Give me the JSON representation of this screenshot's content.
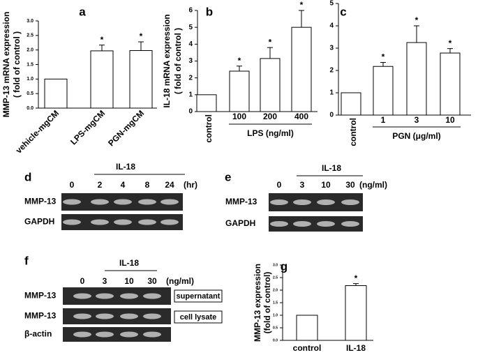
{
  "chart_data": [
    {
      "type": "bar",
      "panel": "a",
      "y_label": [
        "MMP-13 mRNA expression",
        "( fold of control )"
      ],
      "categories": [
        "vehicle-mgCM",
        "LPS-mgCM",
        "PGN-mgCM"
      ],
      "values": [
        1.0,
        1.97,
        1.98
      ],
      "errors": [
        null,
        0.2,
        0.3
      ],
      "stars": [
        null,
        "*",
        "*"
      ],
      "ylim": [
        0,
        3.0
      ],
      "yticks": [
        {
          "value": 0,
          "label": "0.0"
        },
        {
          "value": 0.5,
          "label": "0.5"
        },
        {
          "value": 1,
          "label": "1.0"
        },
        {
          "value": 1.5,
          "label": "1.5"
        },
        {
          "value": 2,
          "label": "2.0"
        },
        {
          "value": 2.5,
          "label": "2.5"
        },
        {
          "value": 3,
          "label": "3.0"
        }
      ],
      "color": "#ffffff"
    },
    {
      "type": "bar",
      "panel": "b",
      "y_label": [
        "IL-18 mRNA expression",
        "( fold of control )"
      ],
      "x_label": "LPS (ng/ml)",
      "categories": [
        "control",
        "100",
        "200",
        "400"
      ],
      "values": [
        1.0,
        2.4,
        3.15,
        5.0
      ],
      "errors": [
        null,
        0.3,
        0.65,
        1.0
      ],
      "stars": [
        null,
        "*",
        "*",
        "*"
      ],
      "ylim": [
        0,
        6
      ],
      "yticks": [
        0,
        1,
        2,
        3,
        4,
        5,
        6
      ],
      "color": "#ffffff"
    },
    {
      "type": "bar",
      "panel": "c",
      "x_label": "PGN (μg/ml)",
      "categories": [
        "control",
        "1",
        "3",
        "10"
      ],
      "values": [
        1.0,
        2.18,
        3.25,
        2.78
      ],
      "errors": [
        null,
        0.18,
        0.75,
        0.2
      ],
      "stars": [
        null,
        "*",
        "*",
        "*"
      ],
      "ylim": [
        0,
        5
      ],
      "yticks": [
        0,
        1,
        2,
        3,
        4,
        5
      ],
      "color": "#ffffff"
    },
    {
      "type": "bar",
      "panel": "g",
      "y_label": [
        "MMP-13 expression",
        "(fold of control)"
      ],
      "categories": [
        "control",
        "IL-18"
      ],
      "values": [
        1.0,
        2.18
      ],
      "errors": [
        null,
        0.08
      ],
      "stars": [
        null,
        "*"
      ],
      "ylim": [
        0,
        3.0
      ],
      "yticks": [
        {
          "value": 0,
          "label": "0.0"
        },
        {
          "value": 0.5,
          "label": "0.5"
        },
        {
          "value": 1,
          "label": "1.0"
        },
        {
          "value": 1.5,
          "label": "1.5"
        },
        {
          "value": 2,
          "label": "2.0"
        },
        {
          "value": 2.5,
          "label": "2.5"
        },
        {
          "value": 3,
          "label": "3.0"
        }
      ],
      "color": "#ffffff"
    }
  ],
  "gels": [
    {
      "panel": "d",
      "group": "IL-18",
      "lanes": [
        "0",
        "2",
        "4",
        "8",
        "24"
      ],
      "unit": "(hr)",
      "rows": [
        {
          "name": "MMP-13"
        },
        {
          "name": "GAPDH"
        }
      ]
    },
    {
      "panel": "e",
      "group": "IL-18",
      "lanes": [
        "0",
        "3",
        "10",
        "30"
      ],
      "unit": "(ng/ml)",
      "rows": [
        {
          "name": "MMP-13"
        },
        {
          "name": "GAPDH"
        }
      ]
    },
    {
      "panel": "f",
      "group": "IL-18",
      "lanes": [
        "0",
        "3",
        "10",
        "30"
      ],
      "unit": "(ng/ml)",
      "rows": [
        {
          "name": "MMP-13",
          "tag": "supernatant"
        },
        {
          "name": "MMP-13",
          "tag": "cell lysate"
        },
        {
          "name": "β-actin"
        }
      ]
    }
  ]
}
